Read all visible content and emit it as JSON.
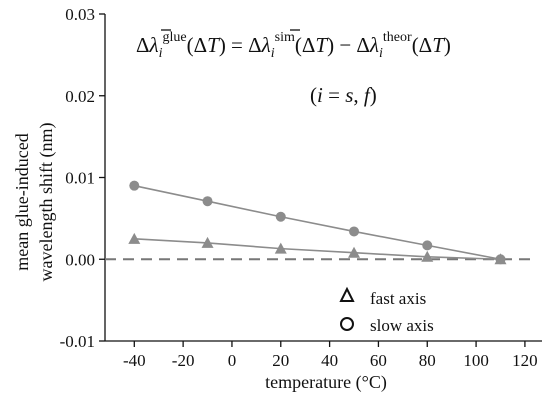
{
  "chart_data": {
    "type": "line",
    "xlabel": "temperature (°C)",
    "ylabel_lines": [
      "mean glue-induced",
      "wavelength shift (nm)"
    ],
    "xlim": [
      -52,
      127
    ],
    "ylim": [
      -0.01,
      0.03
    ],
    "xticks": [
      -40,
      -20,
      0,
      20,
      40,
      60,
      80,
      100,
      120
    ],
    "xtick_labels": [
      "-40",
      "-20",
      "0",
      "20",
      "40",
      "60",
      "80",
      "100",
      "120"
    ],
    "yticks": [
      -0.01,
      0.0,
      0.01,
      0.02,
      0.03
    ],
    "ytick_labels": [
      "-0.01",
      "0.00",
      "0.01",
      "0.02",
      "0.03"
    ],
    "reference_line": {
      "y": 0,
      "style": "dashed"
    },
    "equation": {
      "line1": "Δλ̄ᵢ^glue(ΔT) = Δλ̄ᵢ^sim(ΔT) − Δλᵢ^theor(ΔT)",
      "line2": "(i = s, f)"
    },
    "series": [
      {
        "name": "fast axis",
        "marker": "triangle",
        "color": "#8c8c8c",
        "x": [
          -40,
          -10,
          20,
          50,
          80,
          110
        ],
        "y": [
          0.0025,
          0.002,
          0.0013,
          0.0008,
          0.0003,
          0.0
        ]
      },
      {
        "name": "slow axis",
        "marker": "circle",
        "color": "#8c8c8c",
        "x": [
          -40,
          -10,
          20,
          50,
          80,
          110
        ],
        "y": [
          0.009,
          0.0071,
          0.0052,
          0.0034,
          0.0017,
          0.0
        ]
      }
    ],
    "legend_position": "bottom-right",
    "grid": false
  }
}
